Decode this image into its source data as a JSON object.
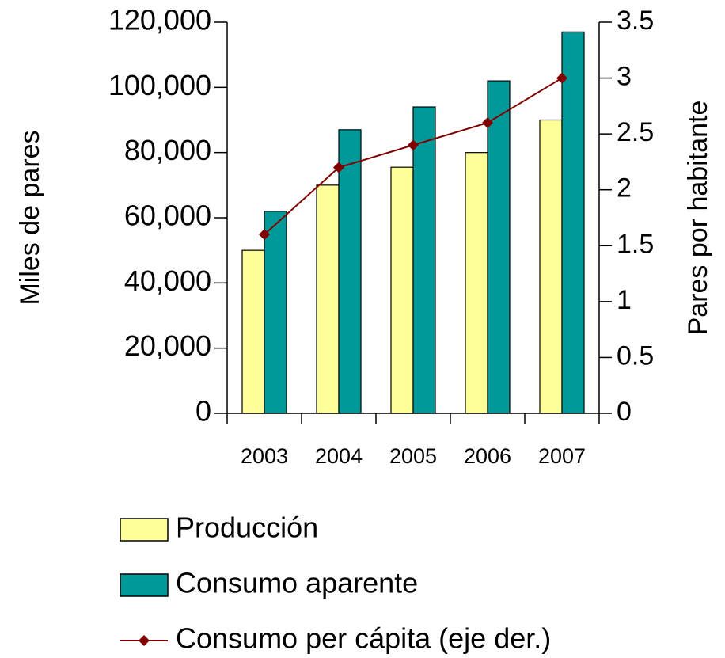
{
  "chart_data": {
    "type": "bar_line",
    "categories": [
      "2003",
      "2004",
      "2005",
      "2006",
      "2007"
    ],
    "series": [
      {
        "name": "Producción",
        "color": "#FFFF99",
        "values": [
          50000,
          70000,
          75500,
          80000,
          90000
        ]
      },
      {
        "name": "Consumo aparente",
        "color": "#009999",
        "values": [
          62000,
          87000,
          94000,
          102000,
          117000
        ]
      },
      {
        "name": "Consumo per cápita (eje der.)",
        "color": "#800000",
        "values": [
          1.6,
          2.2,
          2.4,
          2.6,
          3.0
        ],
        "axis": "y2"
      }
    ],
    "ylabel": "Miles de pares",
    "y2label": "Pares por habitante",
    "ylim": [
      0,
      120000
    ],
    "yticks": [
      0,
      {
        "value": 20000,
        "label": "20,000"
      },
      {
        "value": 40000,
        "label": "40,000"
      },
      {
        "value": 60000,
        "label": "60,000"
      },
      {
        "value": 80000,
        "label": "80,000"
      },
      {
        "value": 100000,
        "label": "100,000"
      },
      {
        "value": 120000,
        "label": "120,000"
      }
    ],
    "y2lim": [
      0,
      3.5
    ],
    "y2ticks": [
      0,
      0.5,
      1,
      1.5,
      2,
      2.5,
      3,
      3.5
    ],
    "legend": "bottom"
  }
}
